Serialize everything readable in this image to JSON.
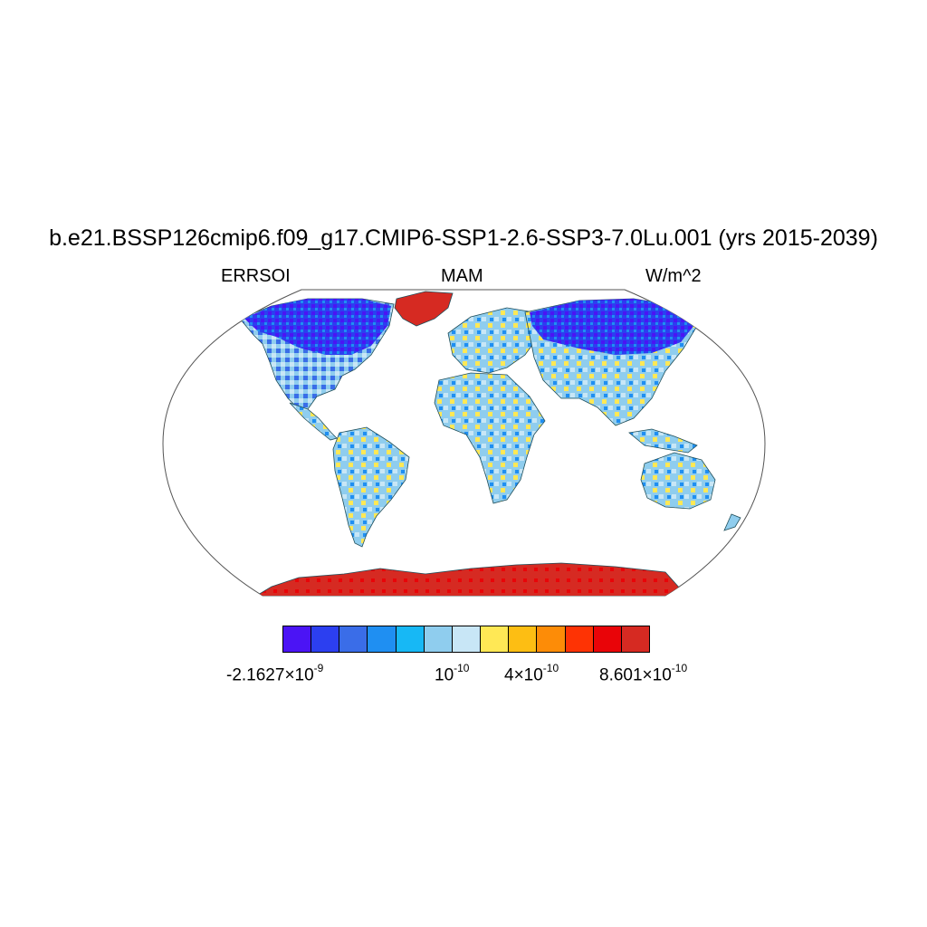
{
  "title": "b.e21.BSSP126cmip6.f09_g17.CMIP6-SSP1-2.6-SSP3-7.0Lu.001 (yrs 2015-2039)",
  "left_label": "ERRSOI",
  "center_label": "MAM",
  "right_label": "W/m^2",
  "colors": {
    "ocean": "#ffffff",
    "coast": "#1f4e5a",
    "frame": "#555555",
    "antarctica": "#d62a22",
    "greenland": "#d62a22"
  },
  "colorbar": {
    "colors": [
      "#4b14f5",
      "#2c3ff0",
      "#3a6de8",
      "#1f8ff2",
      "#17b8f5",
      "#8fcdee",
      "#c8e6f6",
      "#ffe855",
      "#fdbe13",
      "#fd8c07",
      "#fe3304",
      "#e90408",
      "#d62a22"
    ],
    "labels": [
      {
        "mantissa": "-2.1627×10",
        "exp": "-9"
      },
      {
        "mantissa": "10",
        "exp": "-10"
      },
      {
        "mantissa": "4×10",
        "exp": "-10"
      },
      {
        "mantissa": "8.601×10",
        "exp": "-10"
      }
    ]
  },
  "chart_data": {
    "type": "heatmap",
    "projection": "Robinson",
    "variable": "ERRSOI",
    "season": "MAM",
    "units": "W/m^2",
    "color_levels": 13,
    "range": [
      -2.1627e-09,
      8.601e-10
    ],
    "labeled_values": [
      -2.1627e-09,
      1e-10,
      4e-10,
      8.601e-10
    ],
    "regions": [
      {
        "region": "Canada / Alaska",
        "class": "strong negative"
      },
      {
        "region": "Northern Siberia",
        "class": "strong negative"
      },
      {
        "region": "United States",
        "class": "weak negative"
      },
      {
        "region": "Europe",
        "class": "weak negative"
      },
      {
        "region": "South America",
        "class": "mixed near zero"
      },
      {
        "region": "Africa",
        "class": "mixed near zero"
      },
      {
        "region": "South / East Asia",
        "class": "mixed near zero"
      },
      {
        "region": "Australia",
        "class": "weak negative"
      },
      {
        "region": "Greenland",
        "class": "strong positive"
      },
      {
        "region": "Antarctica",
        "class": "strong positive"
      }
    ]
  }
}
